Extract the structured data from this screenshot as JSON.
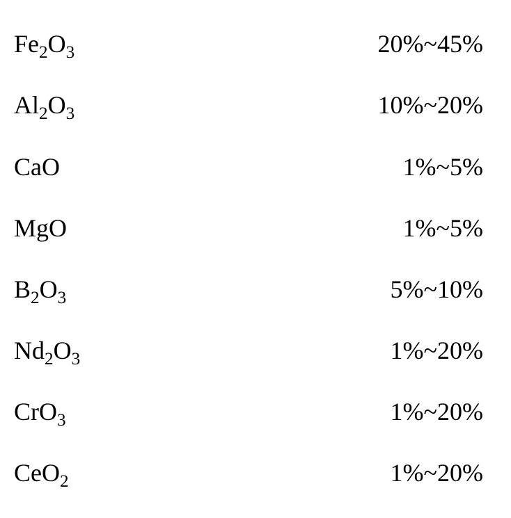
{
  "document": {
    "background_color": "#ffffff",
    "text_color": "#000000",
    "font_family": "Times New Roman",
    "font_size_pt": 28,
    "rows": [
      {
        "formula_html": "Fe<sub>2</sub>O<sub>3</sub>",
        "value": "20%~45%"
      },
      {
        "formula_html": "Al<sub>2</sub>O<sub>3</sub>",
        "value": "10%~20%"
      },
      {
        "formula_html": "CaO",
        "value": "1%~5%"
      },
      {
        "formula_html": "MgO",
        "value": "1%~5%"
      },
      {
        "formula_html": "B<sub>2</sub>O<sub>3</sub>",
        "value": "5%~10%"
      },
      {
        "formula_html": "Nd<sub>2</sub>O<sub>3</sub>",
        "value": "1%~20%"
      },
      {
        "formula_html": "CrO<sub>3</sub>",
        "value": "1%~20%"
      },
      {
        "formula_html": "CeO<sub>2</sub>",
        "value": "1%~20%"
      }
    ]
  }
}
